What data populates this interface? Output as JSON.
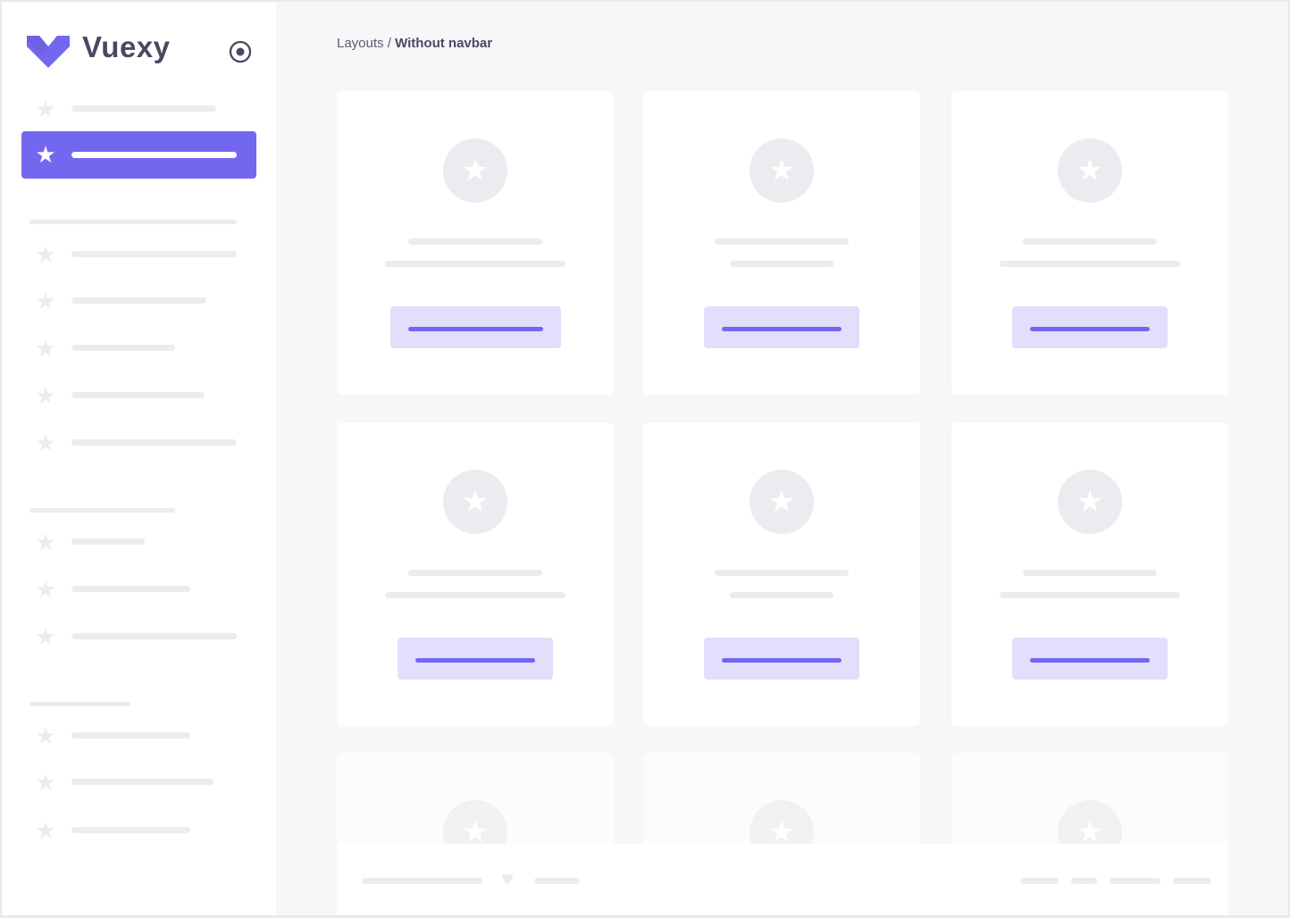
{
  "brand": {
    "name": "Vuexy",
    "accent": "#7367f0"
  },
  "breadcrumb": {
    "parent": "Layouts",
    "separator": " / ",
    "current": "Without navbar"
  },
  "icons": {
    "logo": "vuexy-logo",
    "toggle": "radio-circle-icon",
    "nav": "star-icon",
    "card": "star-icon",
    "footer": "heart-icon"
  },
  "sidebar": {
    "active_index": 1
  }
}
